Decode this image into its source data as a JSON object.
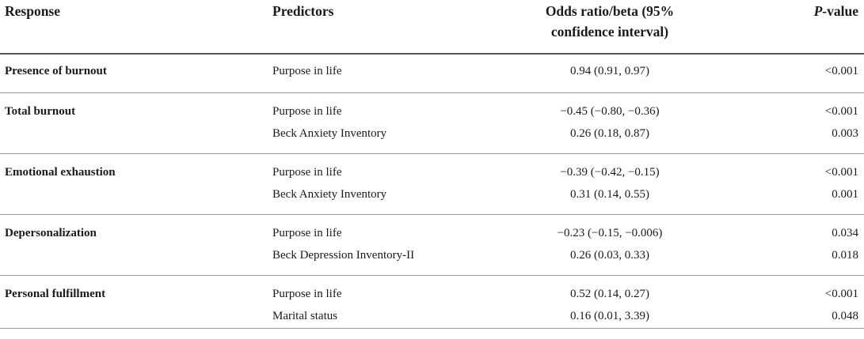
{
  "header": {
    "response": "Response",
    "predictors": "Predictors",
    "odds_line1": "Odds ratio/beta (95%",
    "odds_line2": "confidence interval)",
    "p_italic": "P",
    "p_rest": "-value"
  },
  "groups": [
    {
      "response": "Presence of burnout",
      "rows": [
        {
          "predictor": "Purpose in life",
          "estimate": "0.94 (0.91, 0.97)",
          "p": "<0.001"
        }
      ]
    },
    {
      "response": "Total burnout",
      "rows": [
        {
          "predictor": "Purpose in life",
          "estimate": "−0.45 (−0.80, −0.36)",
          "p": "<0.001"
        },
        {
          "predictor": "Beck Anxiety Inventory",
          "estimate": "0.26 (0.18, 0.87)",
          "p": "0.003"
        }
      ]
    },
    {
      "response": "Emotional exhaustion",
      "rows": [
        {
          "predictor": "Purpose in life",
          "estimate": "−0.39 (−0.42, −0.15)",
          "p": "<0.001"
        },
        {
          "predictor": "Beck Anxiety Inventory",
          "estimate": "0.31 (0.14, 0.55)",
          "p": "0.001"
        }
      ]
    },
    {
      "response": "Depersonalization",
      "rows": [
        {
          "predictor": "Purpose in life",
          "estimate": "−0.23 (−0.15, −0.006)",
          "p": "0.034"
        },
        {
          "predictor": "Beck Depression Inventory-II",
          "estimate": "0.26 (0.03, 0.33)",
          "p": "0.018"
        }
      ]
    },
    {
      "response": "Personal fulfillment",
      "rows": [
        {
          "predictor": "Purpose in life",
          "estimate": "0.52 (0.14, 0.27)",
          "p": "<0.001"
        },
        {
          "predictor": "Marital status",
          "estimate": "0.16 (0.01, 3.39)",
          "p": "0.048"
        }
      ]
    }
  ]
}
